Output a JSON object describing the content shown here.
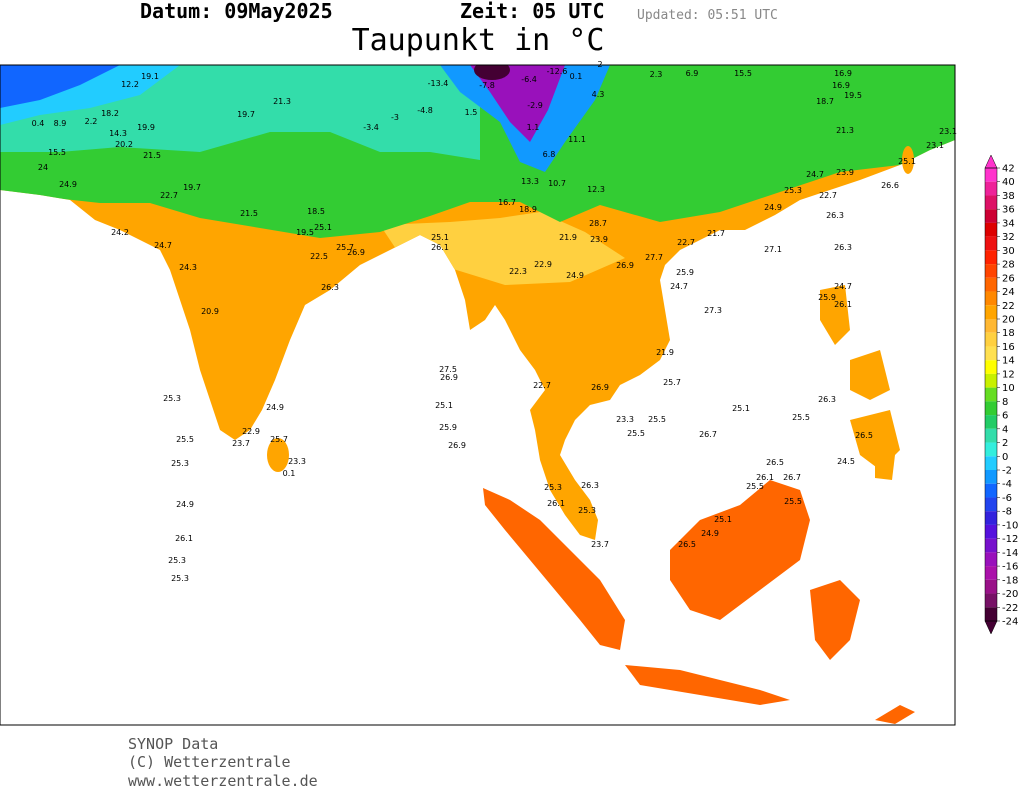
{
  "header": {
    "date_line": "Datum: 09May2025",
    "time_line": "Zeit: 05 UTC",
    "updated": "Updated: 05:51 UTC",
    "title": "Taupunkt in °C"
  },
  "colorbar": {
    "ticks": [
      42,
      40,
      38,
      36,
      34,
      32,
      30,
      28,
      26,
      24,
      22,
      20,
      18,
      16,
      14,
      12,
      10,
      8,
      6,
      4,
      2,
      0,
      -2,
      -4,
      -6,
      -8,
      -10,
      -12,
      -14,
      -16,
      -18,
      -20,
      -22,
      -24
    ],
    "colors": [
      "#ff33cc",
      "#ee2299",
      "#dd1166",
      "#cc0033",
      "#dd0000",
      "#ee1111",
      "#ff2200",
      "#ff4400",
      "#ff6600",
      "#ff8800",
      "#ffa500",
      "#ffb833",
      "#ffd040",
      "#ffe050",
      "#ffff00",
      "#c8f000",
      "#66dd22",
      "#33cc33",
      "#22cc66",
      "#33ddaa",
      "#33eedd",
      "#22ccff",
      "#1199ff",
      "#1166ff",
      "#2244ee",
      "#3322dd",
      "#5511dd",
      "#7711cc",
      "#9911bb",
      "#aa11aa",
      "#991188",
      "#771166",
      "#440033"
    ]
  },
  "stations": [
    25.5,
    25.3,
    24.9,
    26.1,
    25.3,
    25.3,
    25.3,
    27.5,
    26.9,
    25.1,
    25.9,
    26.9,
    22.7,
    25.3,
    26.1,
    25.3,
    26.3,
    23.7,
    25.5,
    26.7,
    25.1,
    25.5,
    24.5,
    26.5,
    26.1,
    26.7,
    25.5,
    25.5,
    25.1,
    24.9,
    26.5,
    26.3,
    26.5,
    27.1,
    26.3,
    22.7,
    26.3,
    23.9,
    26.6,
    23.1,
    23.1,
    25.1,
    24.7,
    27.3,
    21.9,
    25.7,
    24.7,
    25.9,
    26.1,
    24.9,
    26.9,
    23.3,
    25.5,
    25.1,
    26.1,
    0.1,
    23.3,
    23.7,
    22.9,
    25.7,
    24.9,
    20.9,
    24.3,
    24.7,
    24.2,
    24.9,
    24.0,
    15.5,
    0.4,
    8.9,
    2.2,
    18.2,
    12.2,
    19.1,
    -4.8,
    -3.0,
    -3.4,
    -13.4,
    1.5,
    -7.8,
    -6.4,
    -12.6,
    -2.9,
    1.1,
    6.8,
    0.1,
    4.3,
    2.0,
    2.3,
    6.9,
    15.5,
    16.9,
    16.9,
    19.5,
    18.7,
    21.3,
    24.7,
    25.3,
    24.9,
    21.7,
    22.7,
    25.9,
    27.7,
    26.9,
    23.9,
    28.7,
    21.9,
    11.1,
    12.3,
    10.7,
    13.3,
    18.9,
    16.7,
    22.3,
    22.9,
    22.5,
    26.3,
    26.9,
    25.7,
    25.1,
    21.5,
    18.5,
    19.5,
    19.7,
    22.7,
    21.5,
    14.3,
    20.2,
    19.9,
    19.7,
    21.3
  ],
  "footer": [
    "SYNOP Data",
    "(C) Wetterzentrale",
    "www.wetterzentrale.de"
  ]
}
